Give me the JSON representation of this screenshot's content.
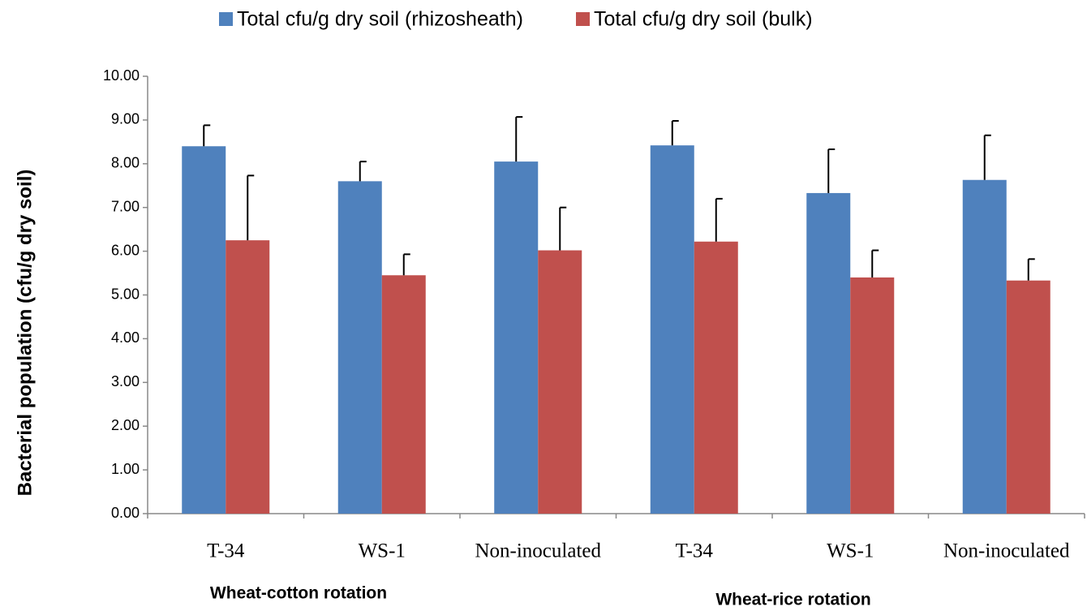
{
  "chart_data": {
    "type": "bar",
    "y_label": "Bacterial population (cfu/g dry soil)",
    "categories": [
      "T-34",
      "WS-1",
      "Non-inoculated",
      "T-34",
      "WS-1",
      "Non-inoculated"
    ],
    "group_labels": [
      "Wheat-cotton rotation",
      "Wheat-rice rotation"
    ],
    "series": [
      {
        "name": "Total cfu/g dry soil (rhizosheath)",
        "color": "#4f81bd",
        "values": [
          8.4,
          7.6,
          8.05,
          8.42,
          7.33,
          7.63
        ],
        "errors": [
          0.48,
          0.45,
          1.02,
          0.56,
          1.0,
          1.02
        ]
      },
      {
        "name": "Total cfu/g dry soil (bulk)",
        "color": "#c0504d",
        "values": [
          6.25,
          5.45,
          6.02,
          6.22,
          5.4,
          5.33
        ],
        "errors": [
          1.48,
          0.48,
          0.98,
          0.98,
          0.62,
          0.49
        ]
      }
    ],
    "ylim": [
      0,
      10
    ],
    "yticks": [
      {
        "value": 0,
        "label": "0.00"
      },
      {
        "value": 1,
        "label": "1.00"
      },
      {
        "value": 2,
        "label": "2.00"
      },
      {
        "value": 3,
        "label": "3.00"
      },
      {
        "value": 4,
        "label": "4.00"
      },
      {
        "value": 5,
        "label": "5.00"
      },
      {
        "value": 6,
        "label": "6.00"
      },
      {
        "value": 7,
        "label": "7.00"
      },
      {
        "value": 8,
        "label": "8.00"
      },
      {
        "value": 9,
        "label": "9.00"
      },
      {
        "value": 10,
        "label": "10.00"
      }
    ],
    "legend": "top"
  }
}
